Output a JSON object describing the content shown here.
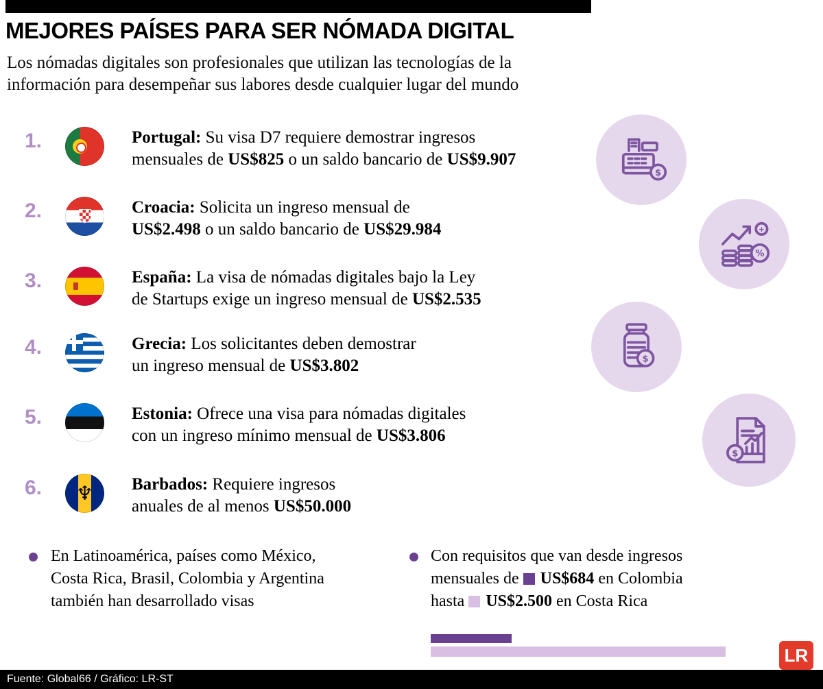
{
  "header": {
    "title": "MEJORES PAÍSES PARA SER NÓMADA DIGITAL",
    "subtitle": "Los nómadas digitales son profesionales que utilizan las tecnologías de la\ninformación para desempeñar sus labores desde cualquier lugar del mundo"
  },
  "countries": [
    {
      "rank": "1.",
      "flag": "portugal-flag",
      "name": "Portugal:",
      "line1": " Su visa D7 requiere demostrar ingresos",
      "line2_pre": "mensuales de ",
      "amount1": "US$825",
      "mid": " o un saldo bancario de ",
      "amount2": "US$9.907"
    },
    {
      "rank": "2.",
      "flag": "croatia-flag",
      "name": "Croacia:",
      "line1": " Solicita un ingreso mensual de",
      "amount1": "US$2.498",
      "mid": " o un saldo bancario de ",
      "amount2": "US$29.984"
    },
    {
      "rank": "3.",
      "flag": "spain-flag",
      "name": "España:",
      "line1": " La visa de nómadas digitales bajo la Ley",
      "line2_pre": "de Startups exige un ingreso mensual de ",
      "amount1": "US$2.535"
    },
    {
      "rank": "4.",
      "flag": "greece-flag",
      "name": "Grecia:",
      "line1": " Los solicitantes deben demostrar",
      "line2_pre": "un ingreso mensual de ",
      "amount1": "US$3.802"
    },
    {
      "rank": "5.",
      "flag": "estonia-flag",
      "name": "Estonia:",
      "line1": " Ofrece una visa para nómadas digitales",
      "line2_pre": "con un ingreso mínimo mensual de ",
      "amount1": "US$3.806"
    },
    {
      "rank": "6.",
      "flag": "barbados-flag",
      "name": "Barbados:",
      "line1": " Requiere ingresos",
      "line2_pre": "anuales de al menos ",
      "amount1": "US$50.000"
    }
  ],
  "notes": {
    "note1": "En Latinoamérica, países como México,\nCosta Rica, Brasil, Colombia y Argentina\ntambién han desarrollado visas",
    "note2": {
      "l1": "Con requisitos que van desde ingresos",
      "l2_pre": "mensuales de ",
      "amount1": "US$684",
      "l2_post": " en Colombia",
      "l3_pre": "hasta ",
      "amount2": "US$2.500",
      "l3_post": " en Costa Rica"
    }
  },
  "chart_data": {
    "type": "bar",
    "orientation": "horizontal",
    "categories": [
      "Colombia",
      "Costa Rica"
    ],
    "values": [
      684,
      2500
    ],
    "unit": "US$",
    "colors": [
      "#6a4191",
      "#d9bfe2"
    ],
    "title": ""
  },
  "footer": {
    "source": "Fuente: Global66 / Gráfico: LR-ST",
    "logo": "LR"
  },
  "icons": {
    "dollar": "$",
    "percent": "%",
    "plus": "+",
    "trident": "♆",
    "decorative": [
      "cash-register-icon",
      "growth-chart-coins-icon",
      "coin-jar-icon",
      "financial-report-icon"
    ]
  },
  "colors": {
    "accent_purple": "#6a4191",
    "light_purple": "#d9bfe2",
    "lavender_circle": "#e6d8ec",
    "icon_stroke": "#7d55a0",
    "rank_number": "#b18fc5",
    "logo_red": "#e23a2b"
  }
}
